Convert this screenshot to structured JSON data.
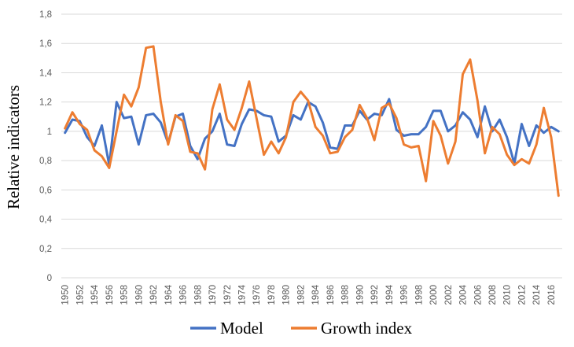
{
  "chart_data": {
    "type": "line",
    "ylabel": "Relative indicators",
    "xlabel": "",
    "ylim": [
      0,
      1.8
    ],
    "y_ticks": [
      "0",
      "0,2",
      "0,4",
      "0,6",
      "0,8",
      "1",
      "1,2",
      "1,4",
      "1,6",
      "1,8"
    ],
    "y_tick_values": [
      0,
      0.2,
      0.4,
      0.6,
      0.8,
      1.0,
      1.2,
      1.4,
      1.6,
      1.8
    ],
    "x": [
      1950,
      1951,
      1952,
      1953,
      1954,
      1955,
      1956,
      1957,
      1958,
      1959,
      1960,
      1961,
      1962,
      1963,
      1964,
      1965,
      1966,
      1967,
      1968,
      1969,
      1970,
      1971,
      1972,
      1973,
      1974,
      1975,
      1976,
      1977,
      1978,
      1979,
      1980,
      1981,
      1982,
      1983,
      1984,
      1985,
      1986,
      1987,
      1988,
      1989,
      1990,
      1991,
      1992,
      1993,
      1994,
      1995,
      1996,
      1997,
      1998,
      1999,
      2000,
      2001,
      2002,
      2003,
      2004,
      2005,
      2006,
      2007,
      2008,
      2009,
      2010,
      2011,
      2012,
      2013,
      2014,
      2015,
      2016,
      2017
    ],
    "x_tick_labels": [
      "1950",
      "1952",
      "1954",
      "1956",
      "1958",
      "1960",
      "1962",
      "1964",
      "1966",
      "1968",
      "1970",
      "1972",
      "1974",
      "1976",
      "1978",
      "1980",
      "1982",
      "1984",
      "1986",
      "1988",
      "1990",
      "1992",
      "1994",
      "1996",
      "1998",
      "2000",
      "2002",
      "2004",
      "2006",
      "2008",
      "2010",
      "2012",
      "2014",
      "2016"
    ],
    "grid": true,
    "legend": "bottom",
    "series": [
      {
        "name": "Model",
        "color": "#4472C4",
        "values": [
          0.99,
          1.08,
          1.07,
          0.96,
          0.9,
          1.04,
          0.77,
          1.2,
          1.09,
          1.1,
          0.91,
          1.11,
          1.12,
          1.06,
          0.92,
          1.1,
          1.12,
          0.9,
          0.81,
          0.95,
          1.0,
          1.12,
          0.91,
          0.9,
          1.05,
          1.15,
          1.14,
          1.11,
          1.1,
          0.93,
          0.97,
          1.11,
          1.08,
          1.2,
          1.17,
          1.06,
          0.89,
          0.88,
          1.04,
          1.04,
          1.14,
          1.08,
          1.12,
          1.11,
          1.22,
          1.01,
          0.97,
          0.98,
          0.98,
          1.03,
          1.14,
          1.14,
          1.0,
          1.04,
          1.13,
          1.08,
          0.96,
          1.17,
          1.0,
          1.08,
          0.96,
          0.78,
          1.05,
          0.9,
          1.04,
          0.99,
          1.03,
          1.0
        ]
      },
      {
        "name": "Growth index",
        "color": "#ED7D31",
        "values": [
          1.02,
          1.13,
          1.05,
          1.01,
          0.87,
          0.83,
          0.75,
          1.0,
          1.25,
          1.17,
          1.3,
          1.57,
          1.58,
          1.2,
          0.91,
          1.11,
          1.07,
          0.86,
          0.85,
          0.74,
          1.15,
          1.32,
          1.08,
          1.01,
          1.16,
          1.34,
          1.09,
          0.84,
          0.93,
          0.85,
          0.96,
          1.2,
          1.27,
          1.21,
          1.03,
          0.97,
          0.85,
          0.86,
          0.96,
          1.01,
          1.18,
          1.09,
          0.94,
          1.16,
          1.19,
          1.09,
          0.91,
          0.89,
          0.9,
          0.66,
          1.07,
          0.97,
          0.78,
          0.93,
          1.39,
          1.49,
          1.21,
          0.85,
          1.03,
          0.98,
          0.84,
          0.77,
          0.81,
          0.78,
          0.91,
          1.16,
          0.96,
          0.56
        ]
      }
    ]
  }
}
